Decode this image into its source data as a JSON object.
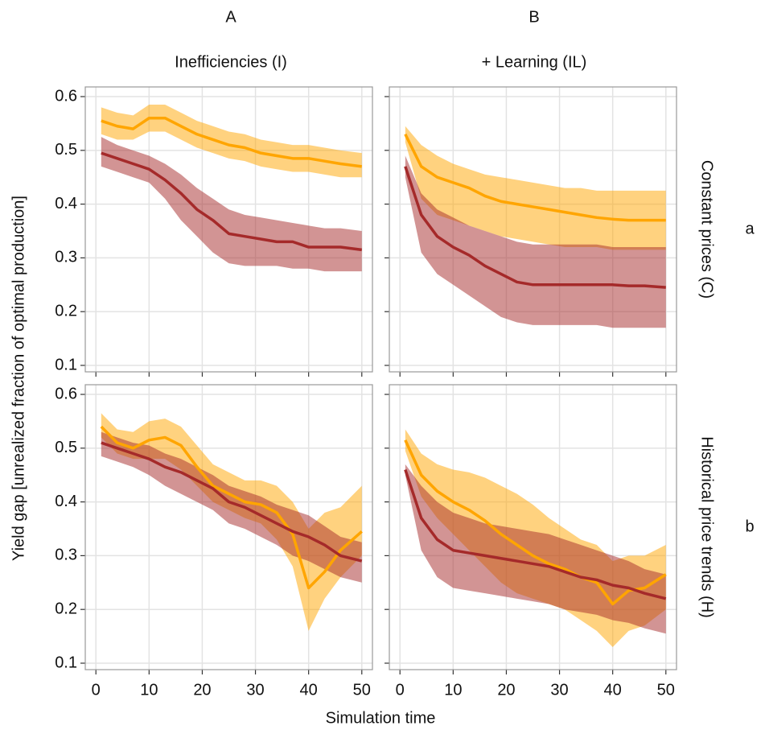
{
  "columns": [
    {
      "letter": "A",
      "title": "Inefficiencies (I)"
    },
    {
      "letter": "B",
      "title": "+ Learning (IL)"
    }
  ],
  "rows": [
    {
      "letter": "a",
      "title": "Constant prices (C)"
    },
    {
      "letter": "b",
      "title": "Historical price trends (H)"
    }
  ],
  "xlabel": "Simulation time",
  "ylabel": "Yield gap [unrealized fraction of optimal production]",
  "chart_data": [
    {
      "type": "line",
      "x": [
        1,
        4,
        7,
        10,
        13,
        16,
        19,
        22,
        25,
        28,
        31,
        34,
        37,
        40,
        43,
        46,
        50
      ],
      "xlim": [
        -2,
        52
      ],
      "ylim": [
        0.088,
        0.618
      ],
      "xticks": [
        0,
        10,
        20,
        30,
        40,
        50
      ],
      "yticks": [
        0.1,
        0.2,
        0.3,
        0.4,
        0.5,
        0.6
      ],
      "grid": true,
      "xtick_labels": false,
      "ytick_labels": true,
      "band_opacity": 0.5,
      "series": [
        {
          "color": "#ffa500",
          "values": [
            0.555,
            0.545,
            0.54,
            0.56,
            0.56,
            0.545,
            0.53,
            0.52,
            0.51,
            0.505,
            0.495,
            0.49,
            0.485,
            0.485,
            0.48,
            0.475,
            0.47
          ],
          "lower": [
            0.53,
            0.52,
            0.52,
            0.535,
            0.535,
            0.52,
            0.505,
            0.495,
            0.485,
            0.48,
            0.47,
            0.465,
            0.46,
            0.46,
            0.455,
            0.45,
            0.45
          ],
          "upper": [
            0.58,
            0.57,
            0.565,
            0.585,
            0.585,
            0.57,
            0.555,
            0.545,
            0.535,
            0.53,
            0.52,
            0.515,
            0.51,
            0.51,
            0.505,
            0.5,
            0.495
          ]
        },
        {
          "color": "#a52a2a",
          "values": [
            0.495,
            0.485,
            0.475,
            0.465,
            0.445,
            0.42,
            0.39,
            0.37,
            0.345,
            0.34,
            0.335,
            0.33,
            0.33,
            0.32,
            0.32,
            0.32,
            0.315
          ],
          "lower": [
            0.47,
            0.46,
            0.45,
            0.44,
            0.41,
            0.37,
            0.34,
            0.31,
            0.29,
            0.285,
            0.285,
            0.285,
            0.28,
            0.28,
            0.275,
            0.275,
            0.275
          ],
          "upper": [
            0.525,
            0.51,
            0.5,
            0.49,
            0.475,
            0.455,
            0.43,
            0.41,
            0.39,
            0.38,
            0.375,
            0.37,
            0.365,
            0.36,
            0.355,
            0.355,
            0.35
          ]
        }
      ]
    },
    {
      "type": "line",
      "x": [
        1,
        4,
        7,
        10,
        13,
        16,
        19,
        22,
        25,
        28,
        31,
        34,
        37,
        40,
        43,
        46,
        50
      ],
      "xlim": [
        -2,
        52
      ],
      "ylim": [
        0.088,
        0.618
      ],
      "xticks": [
        0,
        10,
        20,
        30,
        40,
        50
      ],
      "yticks": [
        0.1,
        0.2,
        0.3,
        0.4,
        0.5,
        0.6
      ],
      "grid": true,
      "xtick_labels": false,
      "ytick_labels": false,
      "band_opacity": 0.5,
      "series": [
        {
          "color": "#ffa500",
          "values": [
            0.53,
            0.47,
            0.45,
            0.44,
            0.43,
            0.415,
            0.405,
            0.4,
            0.395,
            0.39,
            0.385,
            0.38,
            0.375,
            0.372,
            0.37,
            0.37,
            0.37
          ],
          "lower": [
            0.515,
            0.41,
            0.38,
            0.37,
            0.36,
            0.35,
            0.34,
            0.335,
            0.33,
            0.325,
            0.32,
            0.32,
            0.32,
            0.315,
            0.315,
            0.315,
            0.315
          ],
          "upper": [
            0.545,
            0.51,
            0.49,
            0.475,
            0.465,
            0.455,
            0.45,
            0.445,
            0.44,
            0.435,
            0.43,
            0.43,
            0.425,
            0.425,
            0.425,
            0.425,
            0.425
          ]
        },
        {
          "color": "#a52a2a",
          "values": [
            0.47,
            0.38,
            0.34,
            0.32,
            0.305,
            0.285,
            0.27,
            0.255,
            0.25,
            0.25,
            0.25,
            0.25,
            0.25,
            0.25,
            0.248,
            0.248,
            0.245
          ],
          "lower": [
            0.45,
            0.31,
            0.27,
            0.25,
            0.23,
            0.21,
            0.19,
            0.18,
            0.175,
            0.175,
            0.175,
            0.175,
            0.175,
            0.17,
            0.17,
            0.17,
            0.17
          ],
          "upper": [
            0.49,
            0.42,
            0.39,
            0.375,
            0.36,
            0.35,
            0.34,
            0.33,
            0.325,
            0.325,
            0.325,
            0.325,
            0.325,
            0.32,
            0.32,
            0.32,
            0.32
          ]
        }
      ]
    },
    {
      "type": "line",
      "x": [
        1,
        4,
        7,
        10,
        13,
        16,
        19,
        22,
        25,
        28,
        31,
        34,
        37,
        40,
        43,
        46,
        50
      ],
      "xlim": [
        -2,
        52
      ],
      "ylim": [
        0.088,
        0.618
      ],
      "xticks": [
        0,
        10,
        20,
        30,
        40,
        50
      ],
      "yticks": [
        0.1,
        0.2,
        0.3,
        0.4,
        0.5,
        0.6
      ],
      "grid": true,
      "xtick_labels": true,
      "ytick_labels": true,
      "band_opacity": 0.5,
      "series": [
        {
          "color": "#ffa500",
          "values": [
            0.54,
            0.51,
            0.5,
            0.515,
            0.52,
            0.505,
            0.465,
            0.43,
            0.415,
            0.4,
            0.395,
            0.38,
            0.34,
            0.24,
            0.27,
            0.31,
            0.345
          ],
          "lower": [
            0.52,
            0.49,
            0.48,
            0.48,
            0.48,
            0.46,
            0.43,
            0.4,
            0.385,
            0.37,
            0.36,
            0.33,
            0.28,
            0.16,
            0.22,
            0.26,
            0.3
          ],
          "upper": [
            0.565,
            0.535,
            0.53,
            0.55,
            0.555,
            0.54,
            0.505,
            0.47,
            0.455,
            0.44,
            0.44,
            0.43,
            0.4,
            0.35,
            0.38,
            0.39,
            0.43
          ]
        },
        {
          "color": "#a52a2a",
          "values": [
            0.51,
            0.5,
            0.49,
            0.48,
            0.465,
            0.455,
            0.44,
            0.425,
            0.4,
            0.39,
            0.375,
            0.36,
            0.345,
            0.335,
            0.32,
            0.3,
            0.29
          ],
          "lower": [
            0.485,
            0.475,
            0.465,
            0.45,
            0.43,
            0.415,
            0.4,
            0.385,
            0.36,
            0.35,
            0.335,
            0.32,
            0.3,
            0.29,
            0.275,
            0.26,
            0.25
          ],
          "upper": [
            0.53,
            0.52,
            0.51,
            0.505,
            0.49,
            0.48,
            0.465,
            0.45,
            0.43,
            0.42,
            0.41,
            0.395,
            0.385,
            0.375,
            0.355,
            0.335,
            0.325
          ]
        }
      ]
    },
    {
      "type": "line",
      "x": [
        1,
        4,
        7,
        10,
        13,
        16,
        19,
        22,
        25,
        28,
        31,
        34,
        37,
        40,
        43,
        46,
        50
      ],
      "xlim": [
        -2,
        52
      ],
      "ylim": [
        0.088,
        0.618
      ],
      "xticks": [
        0,
        10,
        20,
        30,
        40,
        50
      ],
      "yticks": [
        0.1,
        0.2,
        0.3,
        0.4,
        0.5,
        0.6
      ],
      "grid": true,
      "xtick_labels": true,
      "ytick_labels": false,
      "band_opacity": 0.5,
      "series": [
        {
          "color": "#ffa500",
          "values": [
            0.515,
            0.45,
            0.42,
            0.4,
            0.385,
            0.365,
            0.34,
            0.32,
            0.3,
            0.285,
            0.275,
            0.26,
            0.25,
            0.21,
            0.235,
            0.24,
            0.265
          ],
          "lower": [
            0.495,
            0.41,
            0.37,
            0.34,
            0.31,
            0.28,
            0.25,
            0.23,
            0.22,
            0.21,
            0.2,
            0.18,
            0.16,
            0.13,
            0.16,
            0.17,
            0.2
          ],
          "upper": [
            0.535,
            0.49,
            0.47,
            0.46,
            0.455,
            0.445,
            0.43,
            0.415,
            0.395,
            0.37,
            0.35,
            0.33,
            0.32,
            0.29,
            0.3,
            0.3,
            0.32
          ]
        },
        {
          "color": "#a52a2a",
          "values": [
            0.46,
            0.37,
            0.33,
            0.31,
            0.305,
            0.3,
            0.295,
            0.29,
            0.285,
            0.28,
            0.27,
            0.26,
            0.255,
            0.245,
            0.24,
            0.23,
            0.22
          ],
          "lower": [
            0.45,
            0.31,
            0.26,
            0.24,
            0.235,
            0.23,
            0.225,
            0.22,
            0.215,
            0.21,
            0.2,
            0.195,
            0.19,
            0.18,
            0.175,
            0.165,
            0.155
          ],
          "upper": [
            0.47,
            0.43,
            0.4,
            0.38,
            0.37,
            0.36,
            0.355,
            0.35,
            0.345,
            0.34,
            0.33,
            0.32,
            0.31,
            0.3,
            0.29,
            0.275,
            0.265
          ]
        }
      ]
    }
  ]
}
